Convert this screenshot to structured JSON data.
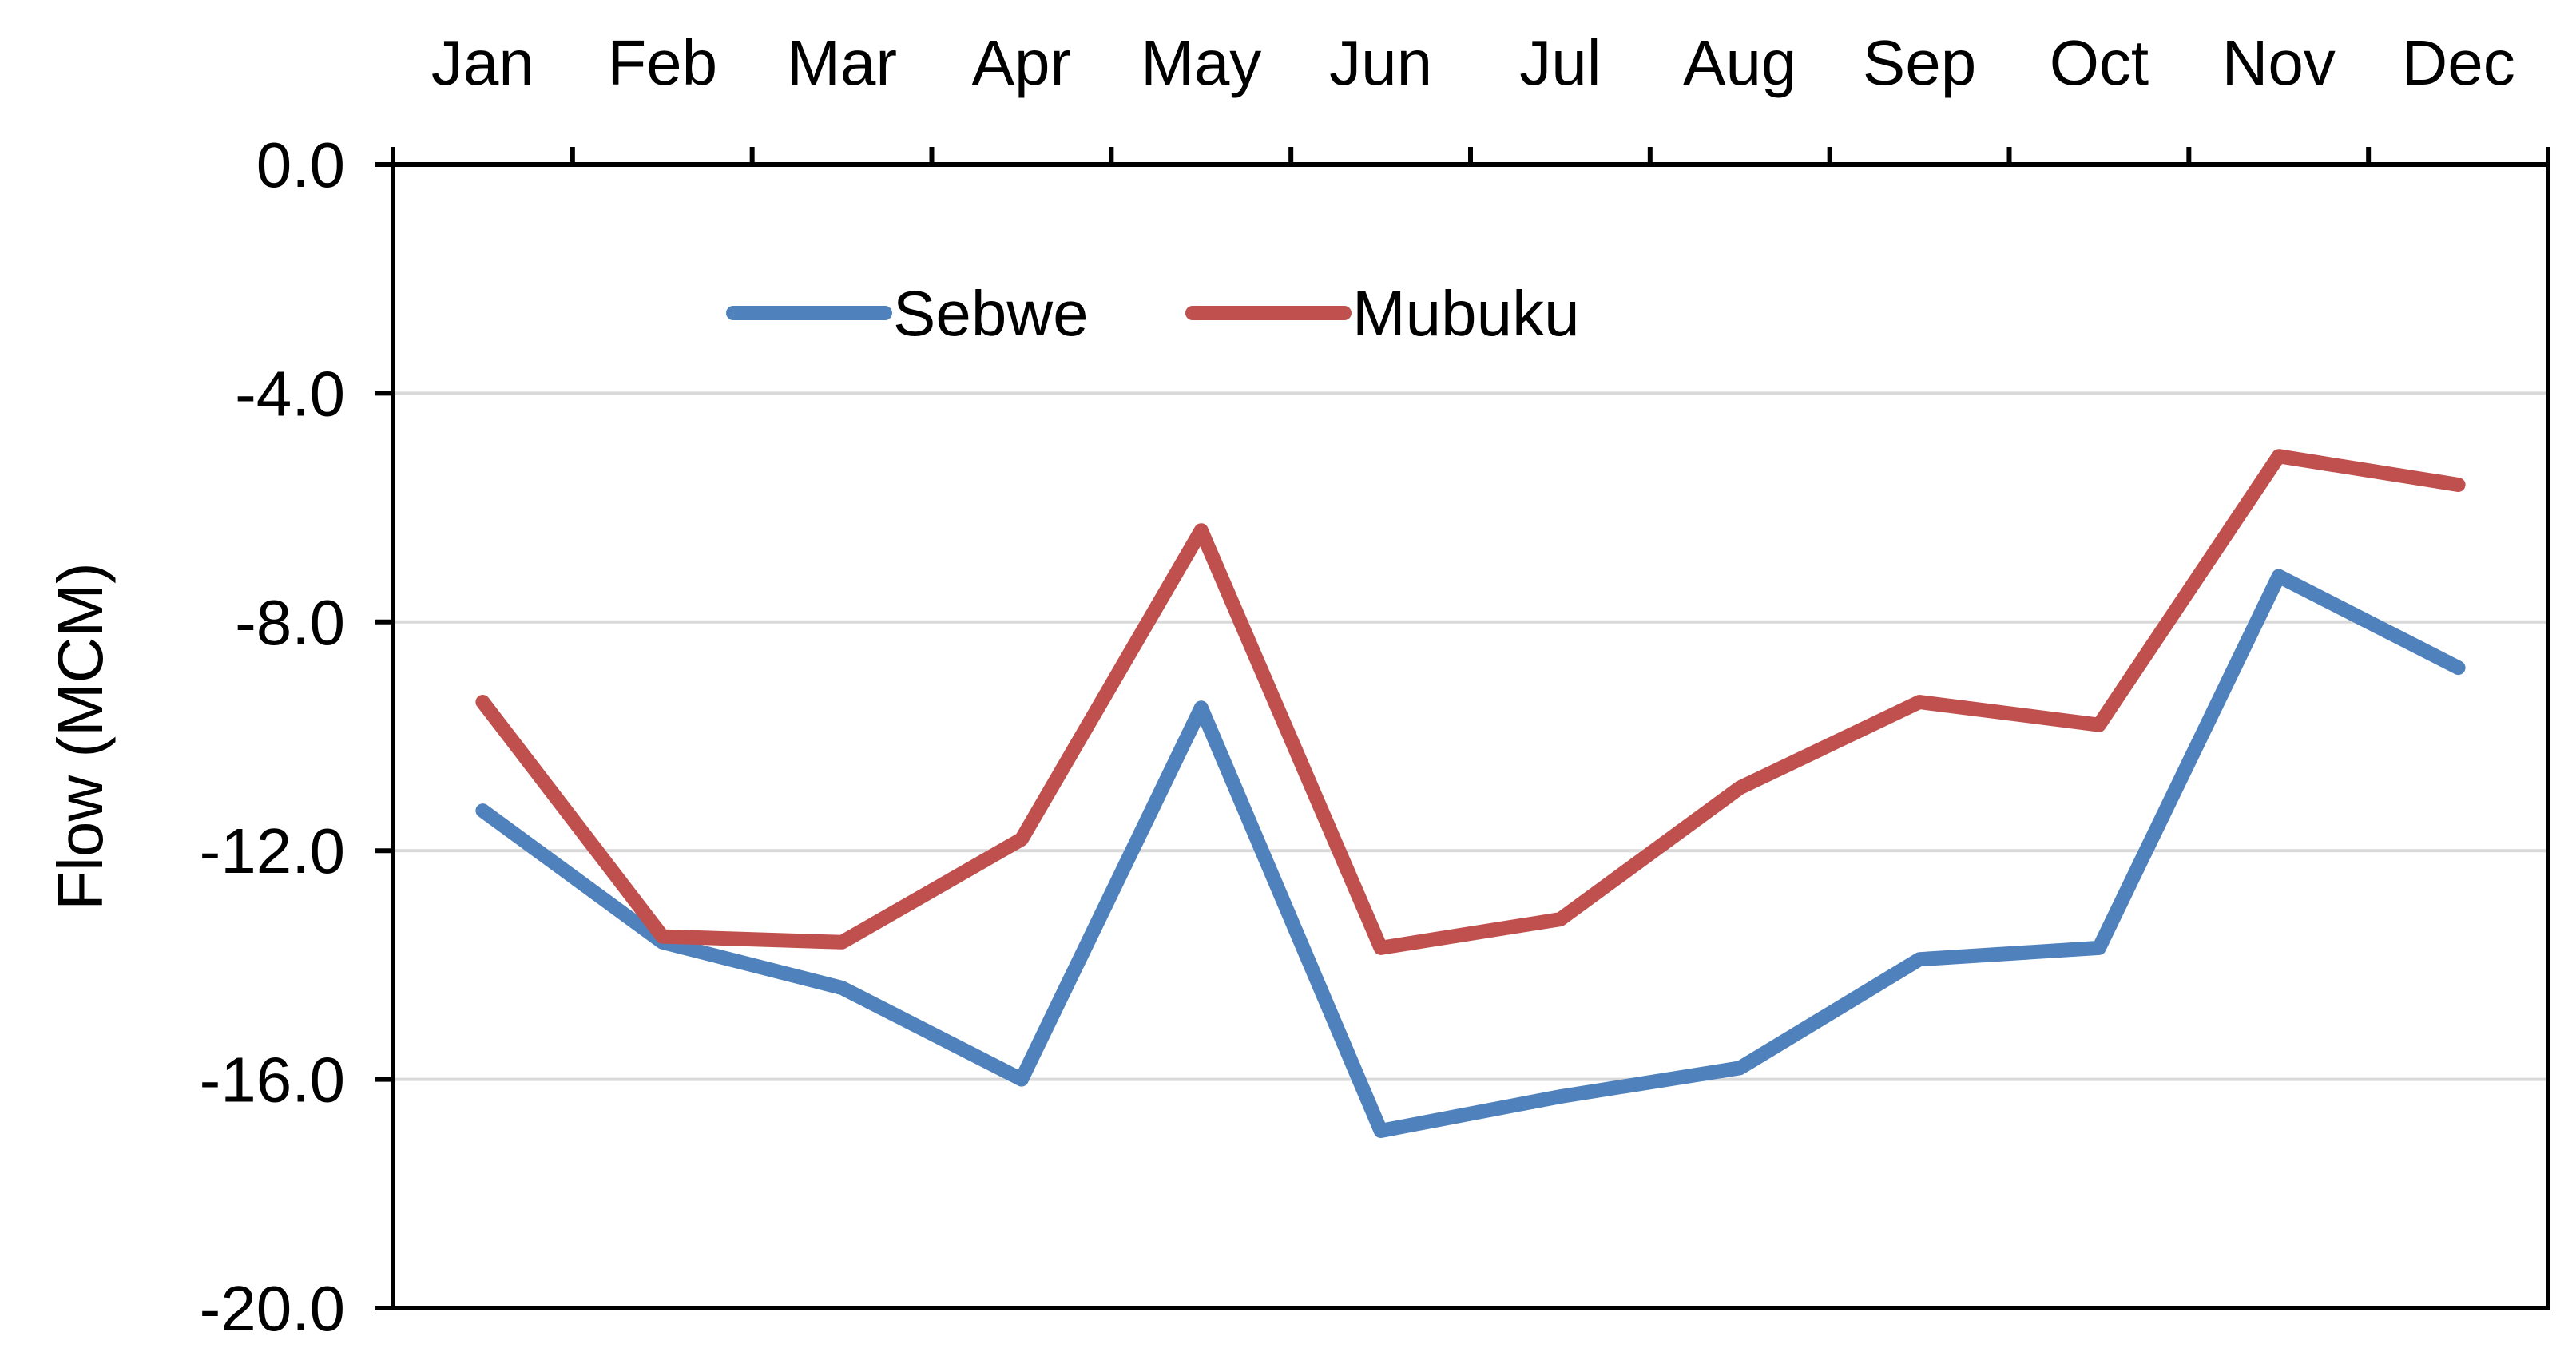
{
  "chart_data": {
    "type": "line",
    "title": "",
    "xlabel": "",
    "ylabel": "Flow (MCM)",
    "categories": [
      "Jan",
      "Feb",
      "Mar",
      "Apr",
      "May",
      "Jun",
      "Jul",
      "Aug",
      "Sep",
      "Oct",
      "Nov",
      "Dec"
    ],
    "ylim": [
      -20,
      0
    ],
    "yticks": [
      0,
      -4,
      -8,
      -12,
      -16,
      -20
    ],
    "ytick_labels": [
      "0.0",
      "-4.0",
      "-8.0",
      "-12.0",
      "-16.0",
      "-20.0"
    ],
    "x_axis_position": "top",
    "grid": "horizontal",
    "legend": "top-left inside",
    "series": [
      {
        "name": "Sebwe",
        "color": "#4F81BD",
        "values": [
          -11.3,
          -13.6,
          -14.4,
          -16.0,
          -9.5,
          -16.9,
          -16.3,
          -15.8,
          -13.9,
          -13.7,
          -7.2,
          -8.8
        ]
      },
      {
        "name": "Mubuku",
        "color": "#C0504D",
        "values": [
          -9.4,
          -13.5,
          -13.6,
          -11.8,
          -6.4,
          -13.7,
          -13.2,
          -10.9,
          -9.4,
          -9.8,
          -5.1,
          -5.6
        ]
      }
    ]
  }
}
